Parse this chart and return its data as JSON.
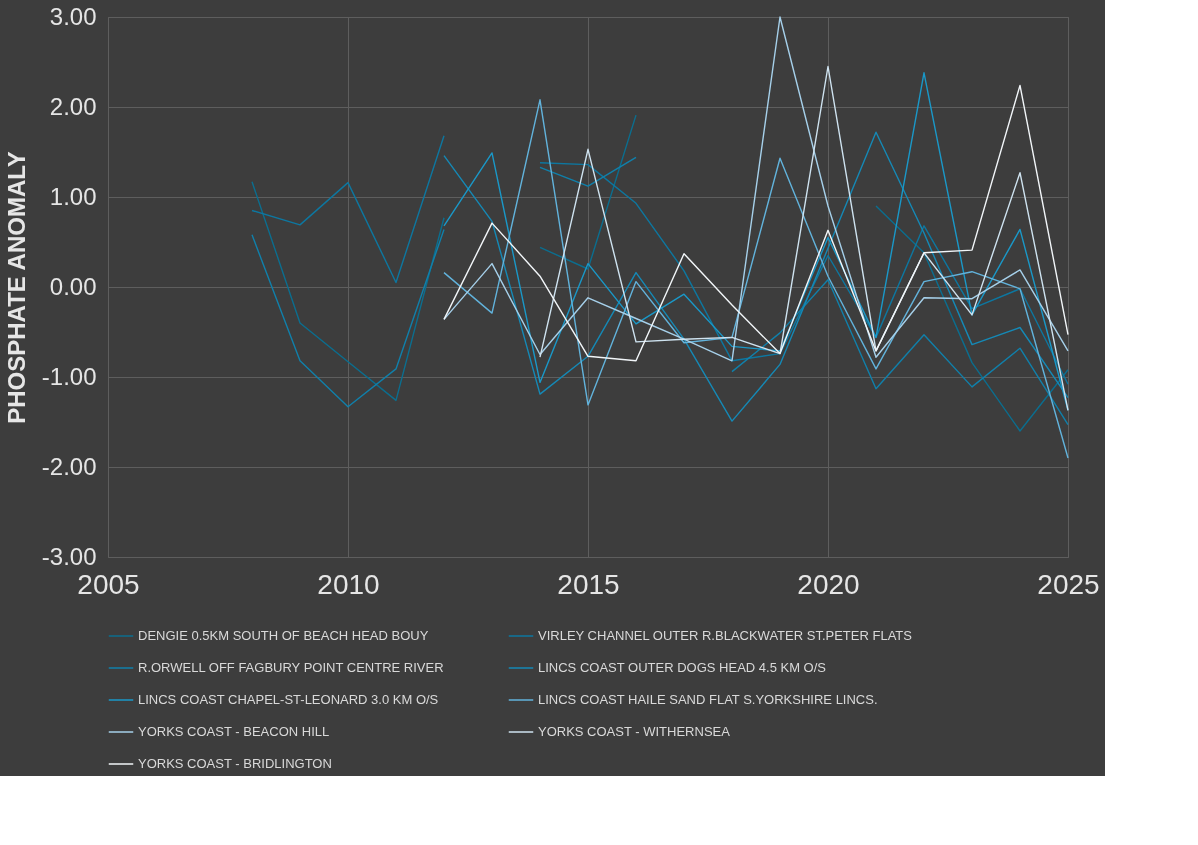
{
  "chart_data": {
    "type": "line",
    "ylabel": "PHOSPHATE ANOMALY",
    "x": [
      2008,
      2009,
      2010,
      2011,
      2012,
      2013,
      2014,
      2015,
      2016,
      2017,
      2018,
      2019,
      2020,
      2021,
      2022,
      2023,
      2024,
      2025
    ],
    "xlim": [
      2005,
      2025
    ],
    "xticks": [
      2005,
      2010,
      2015,
      2020,
      2025
    ],
    "ylim": [
      -3,
      3
    ],
    "yticks": [
      {
        "value": -3,
        "label": "-3.00"
      },
      {
        "value": -2,
        "label": "-2.00"
      },
      {
        "value": -1,
        "label": "-1.00"
      },
      {
        "value": 0,
        "label": "0.00"
      },
      {
        "value": 1,
        "label": "1.00"
      },
      {
        "value": 2,
        "label": "2.00"
      },
      {
        "value": 3,
        "label": "3.00"
      }
    ],
    "grid": true,
    "legend": "bottom",
    "line_style": "solid",
    "marker": "none",
    "series": [
      {
        "name": "DENGIE 0.5KM SOUTH OF BEACH HEAD BOUY",
        "color": "#0b6e8f",
        "values": [
          1.17,
          -0.4,
          -0.83,
          -1.26,
          0.77,
          null,
          0.44,
          0.2,
          1.91,
          null,
          null,
          null,
          null,
          0.9,
          0.38,
          -0.84,
          -1.6,
          -0.92
        ]
      },
      {
        "name": "VIRLEY CHANNEL OUTER R.BLACKWATER ST.PETER FLATS",
        "color": "#0d77a0",
        "values": [
          0.85,
          0.69,
          1.16,
          0.05,
          1.68,
          null,
          1.38,
          1.36,
          0.93,
          0.18,
          -0.82,
          -0.74,
          0.35,
          -0.56,
          0.68,
          -0.24,
          -0.02,
          -1.08
        ]
      },
      {
        "name": "R.ORWELL OFF FAGBURY POINT CENTRE RIVER",
        "color": "#1080ab",
        "values": [
          0.58,
          -0.82,
          -1.33,
          -0.91,
          0.64,
          null,
          1.33,
          1.12,
          1.44,
          null,
          -0.94,
          -0.51,
          0.08,
          -1.13,
          -0.53,
          -1.11,
          -0.68,
          -1.53
        ]
      },
      {
        "name": "LINCS COAST OUTER DOGS HEAD 4.5 KM O/S",
        "color": "#1589b6",
        "values": [
          null,
          null,
          null,
          null,
          1.46,
          0.73,
          -1.19,
          -0.77,
          0.16,
          -0.58,
          -1.49,
          -0.86,
          0.43,
          1.72,
          0.6,
          -0.64,
          -0.45,
          -1.23
        ]
      },
      {
        "name": "LINCS COAST CHAPEL-ST-LEONARD 3.0 KM O/S",
        "color": "#1a98c8",
        "values": [
          null,
          null,
          null,
          null,
          0.68,
          1.49,
          -1.06,
          0.26,
          -0.41,
          -0.08,
          -0.66,
          -0.71,
          0.55,
          -0.56,
          2.38,
          -0.31,
          0.64,
          -1.37
        ]
      },
      {
        "name": "LINCS COAST HAILE SAND FLAT S.YORKSHIRE LINCS.",
        "color": "#62b3dc",
        "values": [
          null,
          null,
          null,
          null,
          0.16,
          -0.29,
          2.08,
          -1.31,
          0.06,
          -0.62,
          -0.56,
          1.43,
          0.12,
          -0.91,
          0.06,
          0.17,
          -0.02,
          -1.9
        ]
      },
      {
        "name": "YORKS COAST - BEACON HILL",
        "color": "#a6d0ea",
        "values": [
          null,
          null,
          null,
          null,
          -0.36,
          0.26,
          -0.75,
          -0.12,
          -0.35,
          -0.58,
          -0.82,
          3.0,
          0.9,
          -0.78,
          -0.12,
          -0.13,
          0.19,
          -0.71
        ]
      },
      {
        "name": "YORKS COAST - WITHERNSEA",
        "color": "#cfe3f0",
        "values": [
          null,
          null,
          null,
          null,
          null,
          null,
          -0.78,
          1.53,
          -0.61,
          -0.58,
          -0.56,
          -0.74,
          2.45,
          -0.71,
          0.38,
          -0.31,
          1.27,
          -1.37
        ]
      },
      {
        "name": "YORKS COAST - BRIDLINGTON",
        "color": "#f2f6f9",
        "values": [
          null,
          null,
          null,
          null,
          -0.36,
          0.71,
          0.12,
          -0.77,
          -0.82,
          0.37,
          -0.2,
          -0.74,
          0.63,
          -0.71,
          0.38,
          0.41,
          2.24,
          -0.53
        ]
      }
    ]
  }
}
